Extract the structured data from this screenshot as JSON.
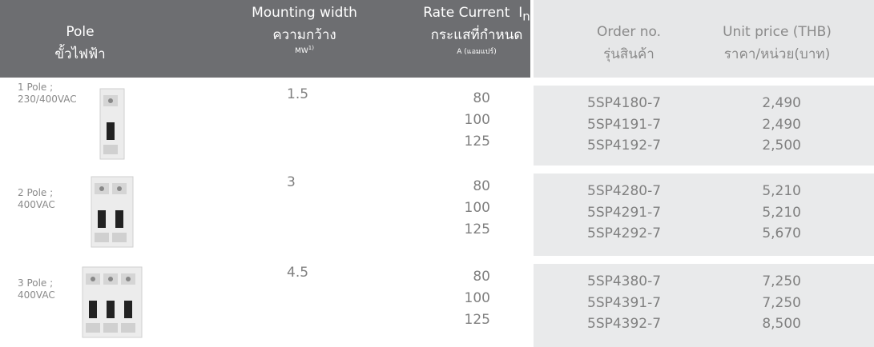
{
  "header": {
    "pole": [
      "Pole",
      "ขั้วไฟฟ้า"
    ],
    "mounting": [
      "Mounting width",
      "ความกว้าง"
    ],
    "mounting_unit": "MW",
    "mounting_note": "1)",
    "current": "Rate Current  I",
    "current_sub": "n",
    "current_th": "กระแสที่กำหนด",
    "current_unit": "A (แอมแปร์)",
    "order": [
      "Order no.",
      "รุ่นสินค้า"
    ],
    "price": [
      "Unit price (THB)",
      "ราคา/หน่วย(บาท)"
    ]
  },
  "rows": [
    {
      "pole": [
        "1 Pole ;",
        "230/400VAC"
      ],
      "mounting": "1.5",
      "currents": [
        "80",
        "100",
        "125"
      ],
      "orders": [
        "5SP4180-7",
        "5SP4191-7",
        "5SP4192-7"
      ],
      "prices": [
        "2,490",
        "2,490",
        "2,500"
      ]
    },
    {
      "pole": [
        "2 Pole ;",
        "400VAC"
      ],
      "mounting": "3",
      "currents": [
        "80",
        "100",
        "125"
      ],
      "orders": [
        "5SP4280-7",
        "5SP4291-7",
        "5SP4292-7"
      ],
      "prices": [
        "5,210",
        "5,210",
        "5,670"
      ]
    },
    {
      "pole": [
        "3 Pole ;",
        "400VAC"
      ],
      "mounting": "4.5",
      "currents": [
        "80",
        "100",
        "125"
      ],
      "orders": [
        "5SP4380-7",
        "5SP4391-7",
        "5SP4392-7"
      ],
      "prices": [
        "7,250",
        "7,250",
        "8,500"
      ]
    }
  ]
}
